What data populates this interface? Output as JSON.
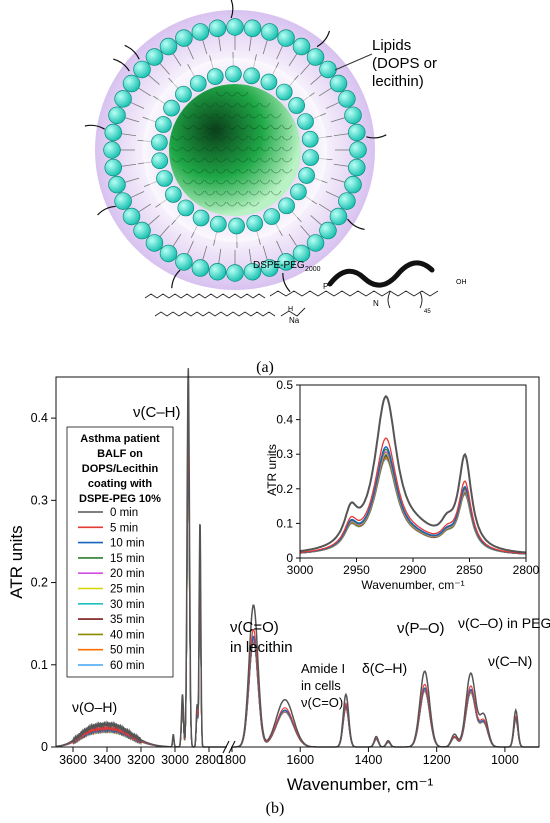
{
  "panel_a": {
    "label": "(a)",
    "callout": [
      "Lipids",
      "(DOPS or",
      "lecithin)"
    ],
    "peg_label": "DSPE-PEG",
    "peg_subscript": "2000",
    "chem_labels": {
      "na": "Na",
      "subscript_45": "45",
      "oh": "OH",
      "h": "H",
      "n": "N",
      "p": "P"
    },
    "colors": {
      "headgroup": "#2ee6d0",
      "core": "#1fa847",
      "shell": "#c9a8e6"
    }
  },
  "panel_b": {
    "label": "(b)",
    "legend_title": [
      "Asthma patient",
      "BALF on",
      "DOPS/Lecithin",
      "coating with",
      "DSPE-PEG 10%"
    ],
    "annotations": {
      "ch": "ν(C–H)",
      "co_lecithin": [
        "ν(C=O)",
        "in lecithin"
      ],
      "amide": [
        "Amide I",
        "in cells",
        "ν(C=O)"
      ],
      "dch": "δ(C–H)",
      "po": "ν(P–O)",
      "co_peg": "ν(C–O) in PEG",
      "cn": "ν(C–N)",
      "oh": "ν(O–H)"
    }
  },
  "chart_data": [
    {
      "type": "line",
      "title": "",
      "xlabel": "Wavenumber, cm⁻¹",
      "ylabel": "ATR units",
      "x_segments": [
        [
          3700,
          2700
        ],
        [
          1800,
          900
        ]
      ],
      "xlim": [
        3700,
        900
      ],
      "ylim": [
        0,
        0.45
      ],
      "x_ticks": [
        3600,
        3400,
        3200,
        3000,
        2800,
        1800,
        1600,
        1400,
        1200,
        1000
      ],
      "x_tick_labels": [
        "3600",
        "3400",
        "3200",
        "3000",
        "2800",
        "1800",
        "1600",
        "1400",
        "1200",
        "1000"
      ],
      "y_ticks": [
        0,
        0.1,
        0.2,
        0.3,
        0.4
      ],
      "y_tick_labels": [
        "0",
        "0.1",
        "0.2",
        "0.3",
        "0.4"
      ],
      "legend_placement": "left",
      "peaks": [
        {
          "center": 3380,
          "width": 120,
          "amp": 0.021
        },
        {
          "center": 3520,
          "width": 60,
          "amp": 0.006
        },
        {
          "center": 3010,
          "width": 4,
          "amp": 0.012
        },
        {
          "center": 2956,
          "width": 6,
          "amp": 0.05
        },
        {
          "center": 2922,
          "width": 7,
          "amp": 0.36
        },
        {
          "center": 2870,
          "width": 5,
          "amp": 0.04
        },
        {
          "center": 2853,
          "width": 5,
          "amp": 0.215
        },
        {
          "center": 1737,
          "width": 13,
          "amp": 0.135
        },
        {
          "center": 1645,
          "width": 25,
          "amp": 0.045
        },
        {
          "center": 1466,
          "width": 8,
          "amp": 0.05
        },
        {
          "center": 1377,
          "width": 6,
          "amp": 0.01
        },
        {
          "center": 1342,
          "width": 6,
          "amp": 0.006
        },
        {
          "center": 1235,
          "width": 14,
          "amp": 0.072
        },
        {
          "center": 1148,
          "width": 9,
          "amp": 0.012
        },
        {
          "center": 1100,
          "width": 14,
          "amp": 0.07
        },
        {
          "center": 1062,
          "width": 12,
          "amp": 0.03
        },
        {
          "center": 968,
          "width": 6,
          "amp": 0.035
        }
      ],
      "series": [
        {
          "name": "0 min",
          "color": "#555555",
          "scale": 1.28
        },
        {
          "name": "5 min",
          "color": "#e53935",
          "scale": 1.06
        },
        {
          "name": "10 min",
          "color": "#1565c0",
          "scale": 1.0
        },
        {
          "name": "15 min",
          "color": "#2e7d32",
          "scale": 0.99
        },
        {
          "name": "20 min",
          "color": "#d24ee0",
          "scale": 0.97
        },
        {
          "name": "25 min",
          "color": "#d4d400",
          "scale": 0.965
        },
        {
          "name": "30 min",
          "color": "#20c0c0",
          "scale": 0.96
        },
        {
          "name": "35 min",
          "color": "#7b1a1a",
          "scale": 0.955
        },
        {
          "name": "40 min",
          "color": "#8a8a00",
          "scale": 0.95
        },
        {
          "name": "50 min",
          "color": "#ff6f00",
          "scale": 0.945
        },
        {
          "name": "60 min",
          "color": "#42a5f5",
          "scale": 0.94
        }
      ]
    },
    {
      "type": "line",
      "title": "",
      "xlabel": "Wavenumber, cm⁻¹",
      "ylabel": "ATR units",
      "xlim": [
        3000,
        2800
      ],
      "ylim": [
        0,
        0.5
      ],
      "x_ticks": [
        3000,
        2950,
        2900,
        2850,
        2800
      ],
      "x_tick_labels": [
        "3000",
        "2950",
        "2900",
        "2850",
        "2800"
      ],
      "y_ticks": [
        0,
        0.1,
        0.2,
        0.3,
        0.4,
        0.5
      ],
      "y_tick_labels": [
        "0",
        "0.1",
        "0.2",
        "0.3",
        "0.4",
        "0.5"
      ],
      "peaks": [
        {
          "center": 2955,
          "width": 7,
          "amp": 0.07
        },
        {
          "center": 2924,
          "width": 12,
          "amp": 0.34
        },
        {
          "center": 2870,
          "width": 7,
          "amp": 0.035
        },
        {
          "center": 2854,
          "width": 7,
          "amp": 0.205
        },
        {
          "center": 2895,
          "width": 20,
          "amp": 0.03
        }
      ],
      "series_scales": [
        1.3,
        0.96,
        0.89,
        0.87,
        0.85,
        0.84,
        0.83,
        0.82,
        0.81,
        0.8,
        0.79
      ]
    }
  ]
}
